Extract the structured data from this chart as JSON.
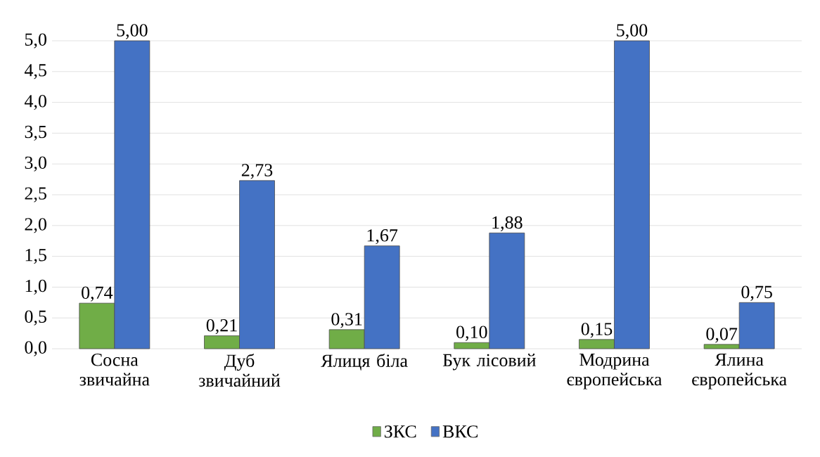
{
  "chart_data": {
    "type": "bar",
    "categories": [
      "Сосна звичайна",
      "Дуб звичайний",
      "Ялиця біла",
      "Бук лісовий",
      "Модрина європейська",
      "Ялина європейська"
    ],
    "series": [
      {
        "name": "ЗКС",
        "color": "#70ad47",
        "values": [
          0.74,
          0.21,
          0.31,
          0.1,
          0.15,
          0.07
        ],
        "value_labels": [
          "0,74",
          "0,21",
          "0,31",
          "0,10",
          "0,15",
          "0,07"
        ]
      },
      {
        "name": "ВКС",
        "color": "#4472c4",
        "values": [
          5.0,
          2.73,
          1.67,
          1.88,
          5.0,
          0.75
        ],
        "value_labels": [
          "5,00",
          "2,73",
          "1,67",
          "1,88",
          "5,00",
          "0,75"
        ]
      }
    ],
    "ylim": [
      0,
      5
    ],
    "yticks": [
      {
        "value": 0,
        "label": "0,0"
      },
      {
        "value": 0.5,
        "label": "0,5"
      },
      {
        "value": 1,
        "label": "1,0"
      },
      {
        "value": 1.5,
        "label": "1,5"
      },
      {
        "value": 2,
        "label": "2,0"
      },
      {
        "value": 2.5,
        "label": "2,5"
      },
      {
        "value": 3,
        "label": "3,0"
      },
      {
        "value": 3.5,
        "label": "3,5"
      },
      {
        "value": 4,
        "label": "4,0"
      },
      {
        "value": 4.5,
        "label": "4,5"
      },
      {
        "value": 5,
        "label": "5,0"
      }
    ],
    "grid": "y",
    "legend": "bottom"
  }
}
